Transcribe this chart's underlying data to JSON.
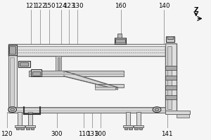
{
  "bg": "#f5f5f5",
  "lc": "#666666",
  "dc": "#333333",
  "wc": "#ffffff",
  "gc": "#d0d0d0",
  "mc": "#aaaaaa",
  "top_labels": {
    "121": 0.13,
    "122": 0.175,
    "150": 0.22,
    "124": 0.275,
    "123": 0.315,
    "130": 0.355
  },
  "top_labels2": {
    "160": 0.565,
    "140": 0.775
  },
  "bot_labels": {
    "120": 0.013,
    "300a": 0.255,
    "110": 0.385,
    "131": 0.425,
    "300b": 0.465,
    "141": 0.79
  }
}
